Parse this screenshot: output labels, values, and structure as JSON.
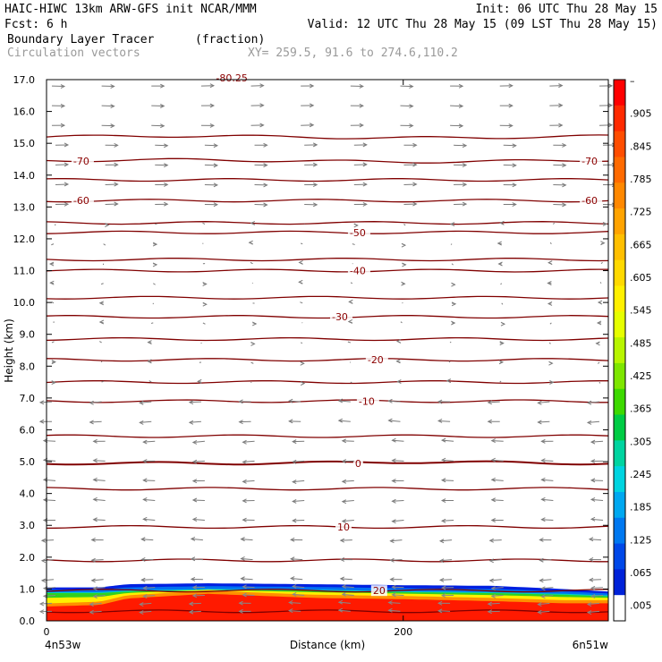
{
  "header": {
    "line1_left": "HAIC-HIWC 13km ARW-GFS init   NCAR/MMM",
    "line1_right": "Init: 06 UTC Thu 28 May 15",
    "line2_left": "Fcst:    6 h",
    "line2_right": "Valid: 12 UTC Thu 28 May 15 (09 LST Thu 28 May 15)",
    "line3_field": "Boundary Layer Tracer",
    "line3_units": "(fraction)",
    "line4_vectors": "Circulation vectors",
    "line4_xy": "XY= 259.5, 91.6 to 274.6,110.2"
  },
  "chart_data": {
    "type": "heatmap",
    "title": "Boundary Layer Tracer",
    "units": "(fraction)",
    "xlabel": "Distance (km)",
    "ylabel": "Height (km)",
    "xlim": [
      0,
      315
    ],
    "ylim": [
      0,
      17
    ],
    "x_tick_labels": [
      {
        "value": 0,
        "label": "0"
      },
      {
        "value": 200,
        "label": "200"
      }
    ],
    "x_end_labels": {
      "left": "4n53w",
      "right": "6n51w"
    },
    "y_ticks": [
      0.0,
      1.0,
      2.0,
      3.0,
      4.0,
      5.0,
      6.0,
      7.0,
      8.0,
      9.0,
      10.0,
      11.0,
      12.0,
      13.0,
      14.0,
      15.0,
      16.0,
      17.0
    ],
    "y_tick_labels": [
      "0.0",
      "1.0",
      "2.0",
      "3.0",
      "4.0",
      "5.0",
      "6.0",
      "7.0",
      "8.0",
      "9.0",
      "10.0",
      "11.0",
      "12.0",
      "13.0",
      "14.0",
      "15.0",
      "16.0",
      "17.0"
    ],
    "colorbar": {
      "labels": [
        "–",
        ".905",
        ".845",
        ".785",
        ".725",
        ".665",
        ".605",
        ".545",
        ".485",
        ".425",
        ".365",
        ".305",
        ".245",
        ".185",
        ".125",
        ".065",
        ".005"
      ],
      "colors": [
        "#ff0000",
        "#ff2a00",
        "#ff4d00",
        "#ff6a00",
        "#ff8800",
        "#ffa300",
        "#ffbf00",
        "#ffd900",
        "#fff000",
        "#e6ff00",
        "#b8f500",
        "#7ee600",
        "#3dd900",
        "#00cc44",
        "#00d4a0",
        "#00d4e0",
        "#00a8f0",
        "#0078f0",
        "#0048e8",
        "#0022d8",
        "#ffffff"
      ]
    },
    "tracer_top_km": {
      "x": [
        0,
        30,
        45,
        90,
        150,
        200,
        250,
        290,
        315
      ],
      "blue_top": [
        1.05,
        1.05,
        1.15,
        1.18,
        1.15,
        1.12,
        1.1,
        1.0,
        0.92
      ],
      "green_top": [
        0.9,
        0.9,
        0.95,
        1.0,
        0.98,
        0.93,
        0.9,
        0.85,
        0.8
      ],
      "red_top": [
        0.45,
        0.5,
        0.7,
        0.85,
        0.72,
        0.68,
        0.62,
        0.55,
        0.55
      ]
    },
    "temperature_contours": [
      {
        "value": -70,
        "label": "-70",
        "height_km": 14.45
      },
      {
        "value": -60,
        "label": "-60",
        "height_km": 13.2
      },
      {
        "value": -50,
        "label": "-50",
        "height_km": 12.2
      },
      {
        "value": -40,
        "label": "-40",
        "height_km": 11.0
      },
      {
        "value": -30,
        "label": "-30",
        "height_km": 9.55
      },
      {
        "value": -20,
        "label": "-20",
        "height_km": 8.2
      },
      {
        "value": -10,
        "label": "-10",
        "height_km": 6.9
      },
      {
        "value": 0,
        "label": "0",
        "height_km": 4.95
      },
      {
        "value": 10,
        "label": "10",
        "height_km": 2.95
      },
      {
        "value": 20,
        "label": "20",
        "height_km": 0.95
      }
    ],
    "unlabeled_contour_heights_km": [
      15.2,
      13.85,
      12.5,
      11.35,
      10.15,
      8.85,
      7.5,
      5.8,
      4.15,
      1.9,
      0.3
    ],
    "top_label": "-80.25",
    "vector_wind_regimes": [
      {
        "layer": "upper",
        "from_km": 12.5,
        "to_km": 17.0,
        "direction": "westerly"
      },
      {
        "layer": "mid",
        "from_km": 7.0,
        "to_km": 12.5,
        "direction": "weak"
      },
      {
        "layer": "lower",
        "from_km": 0.0,
        "to_km": 7.0,
        "direction": "easterly"
      }
    ]
  }
}
